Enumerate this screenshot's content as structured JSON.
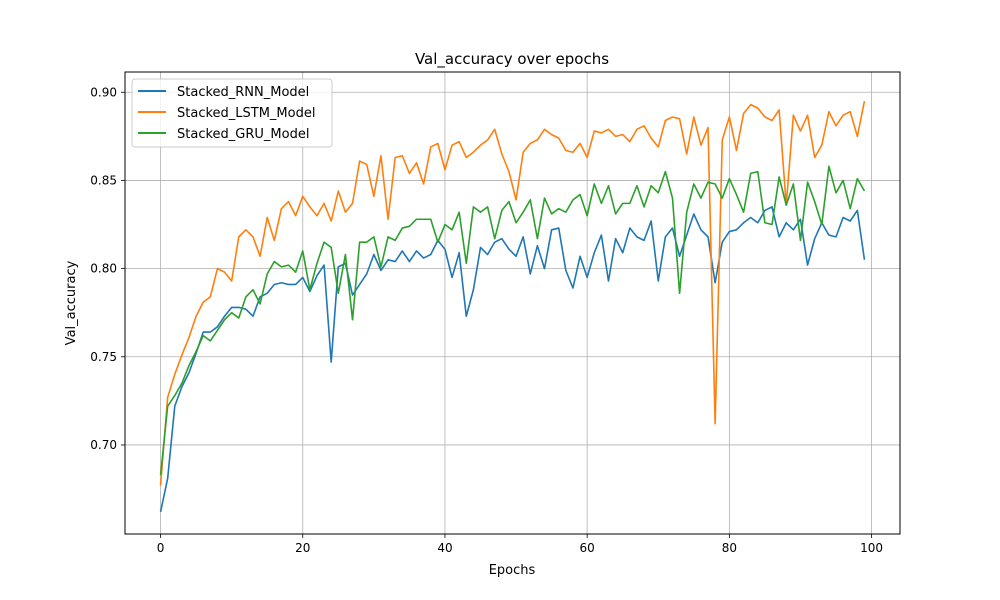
{
  "chart_data": {
    "type": "line",
    "title": "Val_accuracy over epochs",
    "xlabel": "Epochs",
    "ylabel": "Val_accuracy",
    "xlim": [
      -5,
      104
    ],
    "ylim": [
      0.6495,
      0.9115
    ],
    "xticks": [
      0,
      20,
      40,
      60,
      80,
      100
    ],
    "yticks": [
      0.7,
      0.75,
      0.8,
      0.85,
      0.9
    ],
    "xtick_labels": [
      "0",
      "20",
      "40",
      "60",
      "80",
      "100"
    ],
    "ytick_labels": [
      "0.70",
      "0.75",
      "0.80",
      "0.85",
      "0.90"
    ],
    "grid": true,
    "legend_position": "top-left",
    "x": [
      0,
      1,
      2,
      3,
      4,
      5,
      6,
      7,
      8,
      9,
      10,
      11,
      12,
      13,
      14,
      15,
      16,
      17,
      18,
      19,
      20,
      21,
      22,
      23,
      24,
      25,
      26,
      27,
      28,
      29,
      30,
      31,
      32,
      33,
      34,
      35,
      36,
      37,
      38,
      39,
      40,
      41,
      42,
      43,
      44,
      45,
      46,
      47,
      48,
      49,
      50,
      51,
      52,
      53,
      54,
      55,
      56,
      57,
      58,
      59,
      60,
      61,
      62,
      63,
      64,
      65,
      66,
      67,
      68,
      69,
      70,
      71,
      72,
      73,
      74,
      75,
      76,
      77,
      78,
      79,
      80,
      81,
      82,
      83,
      84,
      85,
      86,
      87,
      88,
      89,
      90,
      91,
      92,
      93,
      94,
      95,
      96,
      97,
      98,
      99
    ],
    "series": [
      {
        "name": "Stacked_RNN_Model",
        "color": "#1f77b4",
        "values": [
          0.662,
          0.681,
          0.722,
          0.733,
          0.741,
          0.752,
          0.764,
          0.764,
          0.767,
          0.773,
          0.778,
          0.778,
          0.777,
          0.773,
          0.784,
          0.786,
          0.791,
          0.792,
          0.791,
          0.791,
          0.795,
          0.787,
          0.796,
          0.802,
          0.747,
          0.801,
          0.803,
          0.785,
          0.791,
          0.797,
          0.808,
          0.799,
          0.805,
          0.804,
          0.81,
          0.804,
          0.81,
          0.806,
          0.808,
          0.816,
          0.811,
          0.795,
          0.809,
          0.773,
          0.788,
          0.812,
          0.808,
          0.815,
          0.817,
          0.811,
          0.807,
          0.818,
          0.797,
          0.813,
          0.8,
          0.822,
          0.823,
          0.799,
          0.789,
          0.807,
          0.795,
          0.809,
          0.819,
          0.793,
          0.817,
          0.809,
          0.823,
          0.818,
          0.816,
          0.827,
          0.793,
          0.818,
          0.823,
          0.807,
          0.819,
          0.831,
          0.822,
          0.818,
          0.792,
          0.815,
          0.821,
          0.822,
          0.826,
          0.829,
          0.826,
          0.833,
          0.835,
          0.818,
          0.826,
          0.822,
          0.828,
          0.802,
          0.817,
          0.826,
          0.819,
          0.818,
          0.829,
          0.827,
          0.833,
          0.805
        ]
      },
      {
        "name": "Stacked_LSTM_Model",
        "color": "#ff7f0e",
        "values": [
          0.677,
          0.727,
          0.74,
          0.751,
          0.761,
          0.773,
          0.781,
          0.784,
          0.8,
          0.798,
          0.793,
          0.818,
          0.822,
          0.818,
          0.807,
          0.829,
          0.816,
          0.834,
          0.838,
          0.83,
          0.841,
          0.835,
          0.83,
          0.837,
          0.827,
          0.844,
          0.832,
          0.837,
          0.861,
          0.859,
          0.841,
          0.864,
          0.828,
          0.863,
          0.864,
          0.854,
          0.86,
          0.848,
          0.869,
          0.871,
          0.856,
          0.87,
          0.872,
          0.863,
          0.866,
          0.87,
          0.873,
          0.879,
          0.865,
          0.855,
          0.839,
          0.866,
          0.871,
          0.873,
          0.879,
          0.876,
          0.874,
          0.867,
          0.866,
          0.871,
          0.863,
          0.878,
          0.877,
          0.879,
          0.875,
          0.876,
          0.872,
          0.879,
          0.881,
          0.874,
          0.869,
          0.884,
          0.886,
          0.885,
          0.865,
          0.886,
          0.87,
          0.88,
          0.712,
          0.873,
          0.886,
          0.867,
          0.888,
          0.893,
          0.891,
          0.886,
          0.884,
          0.89,
          0.836,
          0.887,
          0.878,
          0.887,
          0.863,
          0.87,
          0.889,
          0.881,
          0.887,
          0.889,
          0.875,
          0.895
        ]
      },
      {
        "name": "Stacked_GRU_Model",
        "color": "#2ca02c",
        "values": [
          0.683,
          0.722,
          0.728,
          0.735,
          0.745,
          0.753,
          0.762,
          0.759,
          0.765,
          0.771,
          0.775,
          0.772,
          0.784,
          0.788,
          0.78,
          0.797,
          0.804,
          0.801,
          0.802,
          0.798,
          0.81,
          0.788,
          0.803,
          0.815,
          0.812,
          0.786,
          0.808,
          0.771,
          0.815,
          0.815,
          0.818,
          0.801,
          0.818,
          0.816,
          0.823,
          0.824,
          0.828,
          0.828,
          0.828,
          0.815,
          0.825,
          0.822,
          0.832,
          0.803,
          0.835,
          0.832,
          0.835,
          0.817,
          0.833,
          0.838,
          0.826,
          0.832,
          0.839,
          0.817,
          0.84,
          0.831,
          0.834,
          0.832,
          0.839,
          0.842,
          0.83,
          0.848,
          0.837,
          0.847,
          0.831,
          0.837,
          0.837,
          0.847,
          0.835,
          0.847,
          0.843,
          0.855,
          0.84,
          0.786,
          0.832,
          0.848,
          0.84,
          0.849,
          0.848,
          0.84,
          0.851,
          0.842,
          0.832,
          0.854,
          0.855,
          0.826,
          0.825,
          0.852,
          0.836,
          0.848,
          0.816,
          0.849,
          0.838,
          0.825,
          0.858,
          0.843,
          0.85,
          0.834,
          0.851,
          0.844
        ]
      }
    ]
  }
}
